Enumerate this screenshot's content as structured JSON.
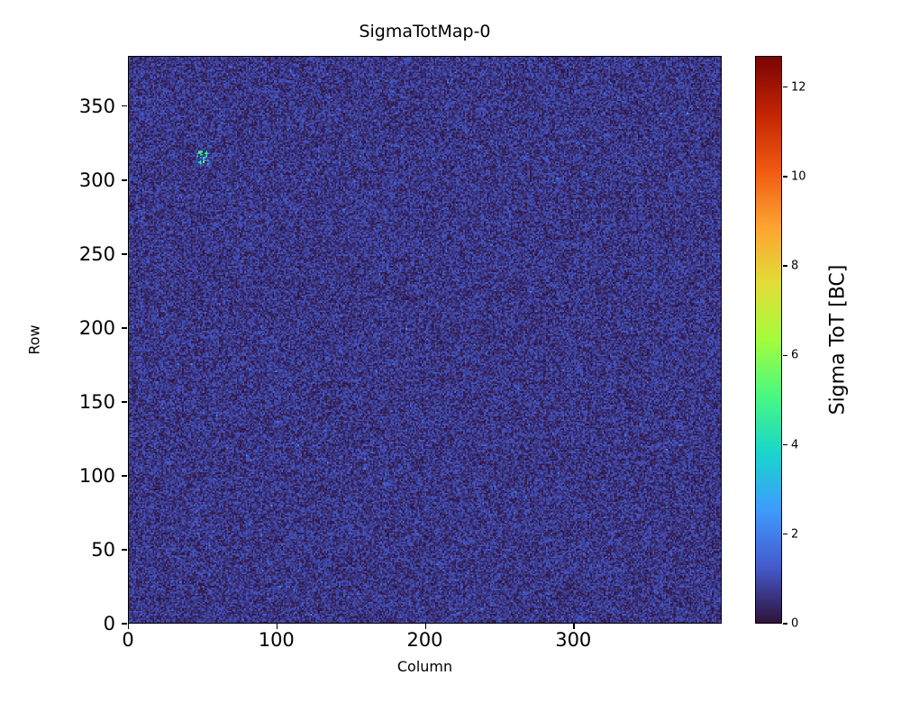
{
  "chart_data": {
    "type": "heatmap",
    "title": "SigmaTotMap-0",
    "xlabel": "Column",
    "ylabel": "Row",
    "x_range": [
      0,
      400
    ],
    "y_range": [
      0,
      384
    ],
    "x_ticks": [
      0,
      100,
      200,
      300
    ],
    "y_ticks": [
      0,
      50,
      100,
      150,
      200,
      250,
      300,
      350
    ],
    "grid": false,
    "legend": false,
    "colorbar": {
      "label": "Sigma ToT [BC]",
      "ticks": [
        0,
        2,
        4,
        6,
        8,
        10,
        12
      ],
      "vmin": 0,
      "vmax": 12.7,
      "colormap": "turbo"
    },
    "data_summary": {
      "description": "400x384 pixel detector map of per-pixel ToT sigma; near-uniform random noise with values mostly between 0 and about 1.3 BC (dark navy/purple mottle), with a small cluster of hotter pixels (~3-6 BC, cyan) around column 50, row 315.",
      "baseline_value_range": [
        0,
        1.3
      ],
      "anomaly_cluster": {
        "column_center": 50,
        "row_center": 315,
        "approx_values": [
          3,
          6
        ],
        "approx_extent_pixels": 8
      }
    }
  }
}
